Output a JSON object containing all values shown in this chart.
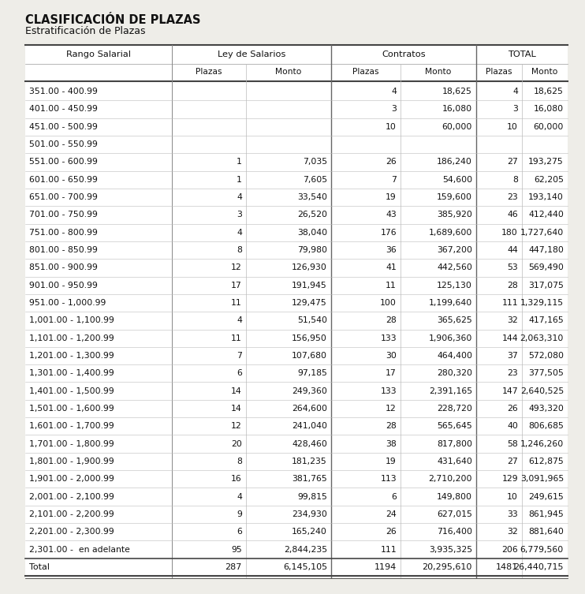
{
  "title": "CLASIFICACIÓN DE PLAZAS",
  "subtitle": "Estratificación de Plazas",
  "rows": [
    [
      "351.00 - 400.99",
      "",
      "",
      "4",
      "18,625",
      "4",
      "18,625"
    ],
    [
      "401.00 - 450.99",
      "",
      "",
      "3",
      "16,080",
      "3",
      "16,080"
    ],
    [
      "451.00 - 500.99",
      "",
      "",
      "10",
      "60,000",
      "10",
      "60,000"
    ],
    [
      "501.00 - 550.99",
      "",
      "",
      "",
      "",
      "",
      ""
    ],
    [
      "551.00 - 600.99",
      "1",
      "7,035",
      "26",
      "186,240",
      "27",
      "193,275"
    ],
    [
      "601.00 - 650.99",
      "1",
      "7,605",
      "7",
      "54,600",
      "8",
      "62,205"
    ],
    [
      "651.00 - 700.99",
      "4",
      "33,540",
      "19",
      "159,600",
      "23",
      "193,140"
    ],
    [
      "701.00 - 750.99",
      "3",
      "26,520",
      "43",
      "385,920",
      "46",
      "412,440"
    ],
    [
      "751.00 - 800.99",
      "4",
      "38,040",
      "176",
      "1,689,600",
      "180",
      "1,727,640"
    ],
    [
      "801.00 - 850.99",
      "8",
      "79,980",
      "36",
      "367,200",
      "44",
      "447,180"
    ],
    [
      "851.00 - 900.99",
      "12",
      "126,930",
      "41",
      "442,560",
      "53",
      "569,490"
    ],
    [
      "901.00 - 950.99",
      "17",
      "191,945",
      "11",
      "125,130",
      "28",
      "317,075"
    ],
    [
      "951.00 - 1,000.99",
      "11",
      "129,475",
      "100",
      "1,199,640",
      "111",
      "1,329,115"
    ],
    [
      "1,001.00 - 1,100.99",
      "4",
      "51,540",
      "28",
      "365,625",
      "32",
      "417,165"
    ],
    [
      "1,101.00 - 1,200.99",
      "11",
      "156,950",
      "133",
      "1,906,360",
      "144",
      "2,063,310"
    ],
    [
      "1,201.00 - 1,300.99",
      "7",
      "107,680",
      "30",
      "464,400",
      "37",
      "572,080"
    ],
    [
      "1,301.00 - 1,400.99",
      "6",
      "97,185",
      "17",
      "280,320",
      "23",
      "377,505"
    ],
    [
      "1,401.00 - 1,500.99",
      "14",
      "249,360",
      "133",
      "2,391,165",
      "147",
      "2,640,525"
    ],
    [
      "1,501.00 - 1,600.99",
      "14",
      "264,600",
      "12",
      "228,720",
      "26",
      "493,320"
    ],
    [
      "1,601.00 - 1,700.99",
      "12",
      "241,040",
      "28",
      "565,645",
      "40",
      "806,685"
    ],
    [
      "1,701.00 - 1,800.99",
      "20",
      "428,460",
      "38",
      "817,800",
      "58",
      "1,246,260"
    ],
    [
      "1,801.00 - 1,900.99",
      "8",
      "181,235",
      "19",
      "431,640",
      "27",
      "612,875"
    ],
    [
      "1,901.00 - 2,000.99",
      "16",
      "381,765",
      "113",
      "2,710,200",
      "129",
      "3,091,965"
    ],
    [
      "2,001.00 - 2,100.99",
      "4",
      "99,815",
      "6",
      "149,800",
      "10",
      "249,615"
    ],
    [
      "2,101.00 - 2,200.99",
      "9",
      "234,930",
      "24",
      "627,015",
      "33",
      "861,945"
    ],
    [
      "2,201.00 - 2,300.99",
      "6",
      "165,240",
      "26",
      "716,400",
      "32",
      "881,640"
    ],
    [
      "2,301.00 -  en adelante",
      "95",
      "2,844,235",
      "111",
      "3,935,325",
      "206",
      "6,779,560"
    ]
  ],
  "total_row": [
    "Total",
    "287",
    "6,145,105",
    "1194",
    "20,295,610",
    "1481",
    "26,440,715"
  ],
  "bg_color": "#eeede8",
  "table_bg": "#ffffff",
  "title_color": "#111111",
  "line_color_heavy": "#444444",
  "line_color_light": "#bbbbbb",
  "line_color_section": "#666666",
  "title_fontsize": 10.5,
  "subtitle_fontsize": 9.0,
  "header_fontsize": 8.2,
  "row_fontsize": 7.8,
  "total_fontsize": 8.0
}
